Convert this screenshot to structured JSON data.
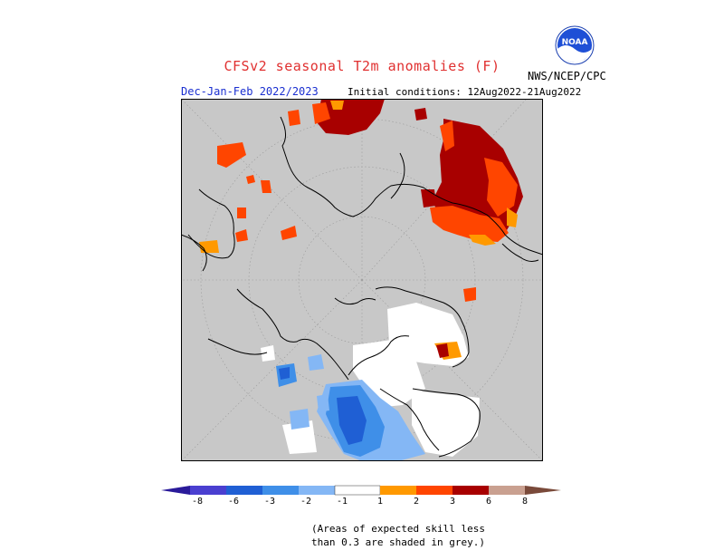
{
  "header": {
    "title": "CFSv2 seasonal T2m anomalies (F)",
    "period": "Dec-Jan-Feb 2022/2023",
    "initial_conditions": "Initial conditions: 12Aug2022-21Aug2022",
    "source": "NWS/NCEP/CPC",
    "logo_text": "NOAA"
  },
  "legend": {
    "labels": [
      "-8",
      "-6",
      "-3",
      "-2",
      "-1",
      "1",
      "2",
      "3",
      "6",
      "8"
    ],
    "colors": {
      "below_8": "#2a1a9a",
      "m8_m6": "#4a3fd0",
      "m6_m3": "#1f5fd4",
      "m3_m2": "#3f8fe8",
      "m2_m1": "#84b7f5",
      "neutral": "#ffffff",
      "p1_p2": "#ff9900",
      "p2_p3": "#ff4500",
      "p3_p6": "#a80000",
      "p6_p8": "#c9a090",
      "above_8": "#7a4a3a"
    }
  },
  "map": {
    "background": "#c8c8c8",
    "low_skill_color": "#c8c8c8"
  },
  "note": {
    "line1": "(Areas of expected skill less",
    "line2": "than 0.3 are shaded in grey.)"
  }
}
